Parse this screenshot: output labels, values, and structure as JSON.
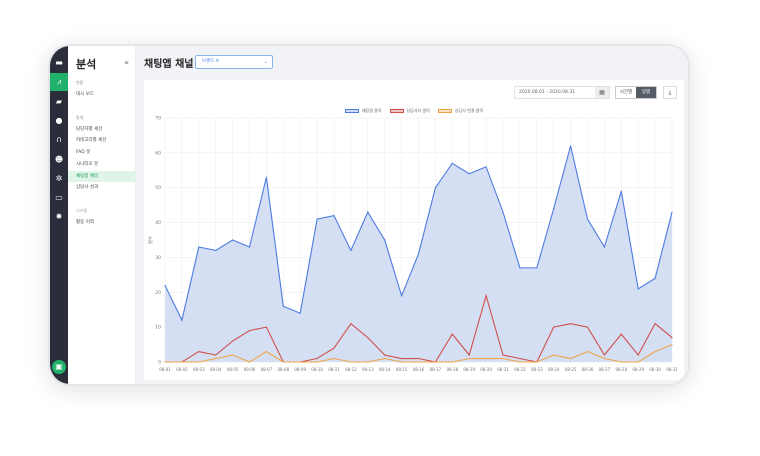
{
  "rail": {
    "icons": [
      "chat-icon",
      "analytics-icon",
      "folder-icon",
      "users-icon",
      "headset-icon",
      "bot-icon",
      "settings-spark-icon",
      "monitor-icon",
      "gear-icon",
      "chat-bubble-icon"
    ],
    "active": 1
  },
  "sidebar": {
    "title": "분석",
    "collapse": "«",
    "sections": [
      {
        "label": "현황",
        "items": [
          "대시 보드"
        ]
      },
      {
        "label": "통계",
        "items": [
          "담당자별 세션",
          "카테고리별 세션",
          "FAQ 봇",
          "시나리오 봇",
          "채팅앱 채널",
          "상담사 성과"
        ]
      },
      {
        "label": "시스템",
        "items": [
          "활동 이력"
        ]
      }
    ],
    "active": "채팅앱 채널"
  },
  "header": {
    "title": "채팅앱 채널",
    "dropdown": "브랜드 A"
  },
  "toolbar": {
    "date_range": "2020.08.01 - 2020.08.31",
    "hourly": "시간별",
    "daily": "일별",
    "active": "일별"
  },
  "chart_data": {
    "type": "area",
    "ylabel": "횟수",
    "ylim": [
      0,
      70
    ],
    "yticks": [
      0,
      10,
      20,
      30,
      40,
      50,
      60,
      70
    ],
    "legend_position": "top-center",
    "grid": true,
    "categories": [
      "08-01",
      "08-02",
      "08-03",
      "08-04",
      "08-05",
      "08-06",
      "08-07",
      "08-08",
      "08-09",
      "08-10",
      "08-11",
      "08-12",
      "08-13",
      "08-14",
      "08-15",
      "08-16",
      "08-17",
      "08-18",
      "08-19",
      "08-20",
      "08-21",
      "08-22",
      "08-23",
      "08-24",
      "08-25",
      "08-26",
      "08-27",
      "08-28",
      "08-29",
      "08-30",
      "08-31"
    ],
    "series": [
      {
        "name": "채팅앱 클릭",
        "color": "#4d7be0",
        "fill": "#d2ddf3",
        "values": [
          22,
          12,
          33,
          32,
          35,
          33,
          53,
          16,
          14,
          41,
          42,
          32,
          43,
          35,
          19,
          31,
          50,
          57,
          54,
          56,
          43,
          27,
          27,
          44,
          62,
          41,
          33,
          49,
          21,
          24,
          43
        ]
      },
      {
        "name": "상담사지 클릭",
        "color": "#d0504a",
        "values": [
          0,
          0,
          3,
          2,
          6,
          9,
          10,
          0,
          0,
          1,
          4,
          11,
          7,
          2,
          1,
          1,
          0,
          8,
          2,
          19,
          2,
          1,
          0,
          10,
          11,
          10,
          2,
          8,
          2,
          11,
          7
        ]
      },
      {
        "name": "상담사 연결 클릭",
        "color": "#f0a445",
        "values": [
          0,
          0,
          0,
          1,
          2,
          0,
          3,
          0,
          0,
          0,
          1,
          0,
          0,
          1,
          0,
          0,
          0,
          0,
          1,
          1,
          1,
          0,
          0,
          2,
          1,
          3,
          1,
          0,
          0,
          3,
          5
        ]
      }
    ]
  }
}
